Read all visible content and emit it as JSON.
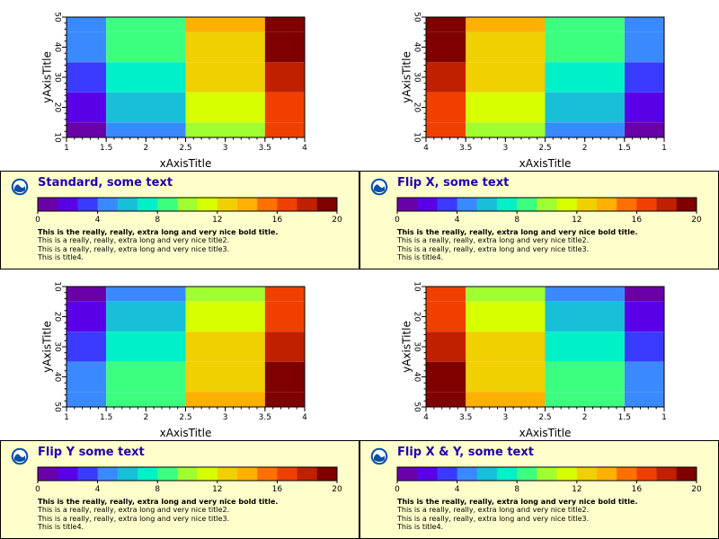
{
  "colors": {
    "colormap": [
      "#6a00a8",
      "#5a00e8",
      "#3a3aff",
      "#3a8aff",
      "#17c0d8",
      "#00f0c8",
      "#3cff80",
      "#a0ff30",
      "#d8ff00",
      "#f0d000",
      "#ffb000",
      "#ff7000",
      "#f04000",
      "#c02000",
      "#800000"
    ],
    "legend_bg": "#ffffcc",
    "title_color": "#2200aa"
  },
  "logo_icon": "noaa-logo-icon",
  "panels": [
    {
      "title": "Standard, some text",
      "lines": [
        "This is the really, really, extra long and very nice bold title.",
        "This is a really, really, extra long and very nice title2.",
        "This is a really, really, extra long and very nice title3.",
        "This is title4."
      ]
    },
    {
      "title": "Flip X, some text",
      "lines": [
        "This is the really, really, extra long and very nice bold title.",
        "This is a really, really, extra long and very nice title2.",
        "This is a really, really, extra long and very nice title3.",
        "This is title4."
      ]
    },
    {
      "title": "Flip Y some text",
      "lines": [
        "This is the really, really, extra long and very nice bold title.",
        "This is a really, really, extra long and very nice title2.",
        "This is a really, really, extra long and very nice title3.",
        "This is title4."
      ]
    },
    {
      "title": "Flip X & Y, some text",
      "lines": [
        "This is the really, really, extra long and very nice bold title.",
        "This is a really, really, extra long and very nice title2.",
        "This is a really, really, extra long and very nice title3.",
        "This is title4."
      ]
    }
  ],
  "chart_data": [
    {
      "type": "heatmap",
      "xlabel": "xAxisTitle",
      "ylabel": "yAxisTitle",
      "xlim": [
        1,
        4
      ],
      "ylim": [
        10,
        50
      ],
      "xflip": false,
      "yflip": false,
      "x_tick_labels": [
        "1",
        "1.5",
        "2",
        "2.5",
        "3",
        "3.5",
        "4"
      ],
      "y_tick_labels": [
        "10",
        "20",
        "30",
        "40",
        "50"
      ],
      "x_edges": [
        1,
        1.5,
        2.5,
        3.5,
        4
      ],
      "y_edges": [
        10,
        15,
        25,
        35,
        45,
        50
      ],
      "values": [
        [
          1,
          5,
          10,
          16
        ],
        [
          2,
          6,
          11,
          17
        ],
        [
          3,
          7,
          12,
          18
        ],
        [
          4,
          8,
          13,
          19
        ],
        [
          5,
          9,
          14,
          20
        ]
      ],
      "colorbar": {
        "range": [
          0,
          20
        ],
        "ticks": [
          "0",
          "4",
          "8",
          "12",
          "16",
          "20"
        ]
      }
    },
    {
      "type": "heatmap",
      "xlabel": "xAxisTitle",
      "ylabel": "yAxisTitle",
      "xlim": [
        1,
        4
      ],
      "ylim": [
        10,
        50
      ],
      "xflip": true,
      "yflip": false,
      "x_tick_labels": [
        "4",
        "3.5",
        "3",
        "2.5",
        "2",
        "1.5",
        "1"
      ],
      "y_tick_labels": [
        "10",
        "20",
        "30",
        "40",
        "50"
      ],
      "x_edges": [
        1,
        1.5,
        2.5,
        3.5,
        4
      ],
      "y_edges": [
        10,
        15,
        25,
        35,
        45,
        50
      ],
      "values": [
        [
          1,
          5,
          10,
          16
        ],
        [
          2,
          6,
          11,
          17
        ],
        [
          3,
          7,
          12,
          18
        ],
        [
          4,
          8,
          13,
          19
        ],
        [
          5,
          9,
          14,
          20
        ]
      ],
      "colorbar": {
        "range": [
          0,
          20
        ],
        "ticks": [
          "0",
          "4",
          "8",
          "12",
          "16",
          "20"
        ]
      }
    },
    {
      "type": "heatmap",
      "xlabel": "xAxisTitle",
      "ylabel": "yAxisTitle",
      "xlim": [
        1,
        4
      ],
      "ylim": [
        10,
        50
      ],
      "xflip": false,
      "yflip": true,
      "x_tick_labels": [
        "1",
        "1.5",
        "2",
        "2.5",
        "3",
        "3.5",
        "4"
      ],
      "y_tick_labels": [
        "10",
        "20",
        "30",
        "40",
        "50"
      ],
      "x_edges": [
        1,
        1.5,
        2.5,
        3.5,
        4
      ],
      "y_edges": [
        10,
        15,
        25,
        35,
        45,
        50
      ],
      "values": [
        [
          1,
          5,
          10,
          16
        ],
        [
          2,
          6,
          11,
          17
        ],
        [
          3,
          7,
          12,
          18
        ],
        [
          4,
          8,
          13,
          19
        ],
        [
          5,
          9,
          14,
          20
        ]
      ],
      "colorbar": {
        "range": [
          0,
          20
        ],
        "ticks": [
          "0",
          "4",
          "8",
          "12",
          "16",
          "20"
        ]
      }
    },
    {
      "type": "heatmap",
      "xlabel": "xAxisTitle",
      "ylabel": "yAxisTitle",
      "xlim": [
        1,
        4
      ],
      "ylim": [
        10,
        50
      ],
      "xflip": true,
      "yflip": true,
      "x_tick_labels": [
        "4",
        "3.5",
        "3",
        "2.5",
        "2",
        "1.5",
        "1"
      ],
      "y_tick_labels": [
        "10",
        "20",
        "30",
        "40",
        "50"
      ],
      "x_edges": [
        1,
        1.5,
        2.5,
        3.5,
        4
      ],
      "y_edges": [
        10,
        15,
        25,
        35,
        45,
        50
      ],
      "values": [
        [
          1,
          5,
          10,
          16
        ],
        [
          2,
          6,
          11,
          17
        ],
        [
          3,
          7,
          12,
          18
        ],
        [
          4,
          8,
          13,
          19
        ],
        [
          5,
          9,
          14,
          20
        ]
      ],
      "colorbar": {
        "range": [
          0,
          20
        ],
        "ticks": [
          "0",
          "4",
          "8",
          "12",
          "16",
          "20"
        ]
      }
    }
  ]
}
